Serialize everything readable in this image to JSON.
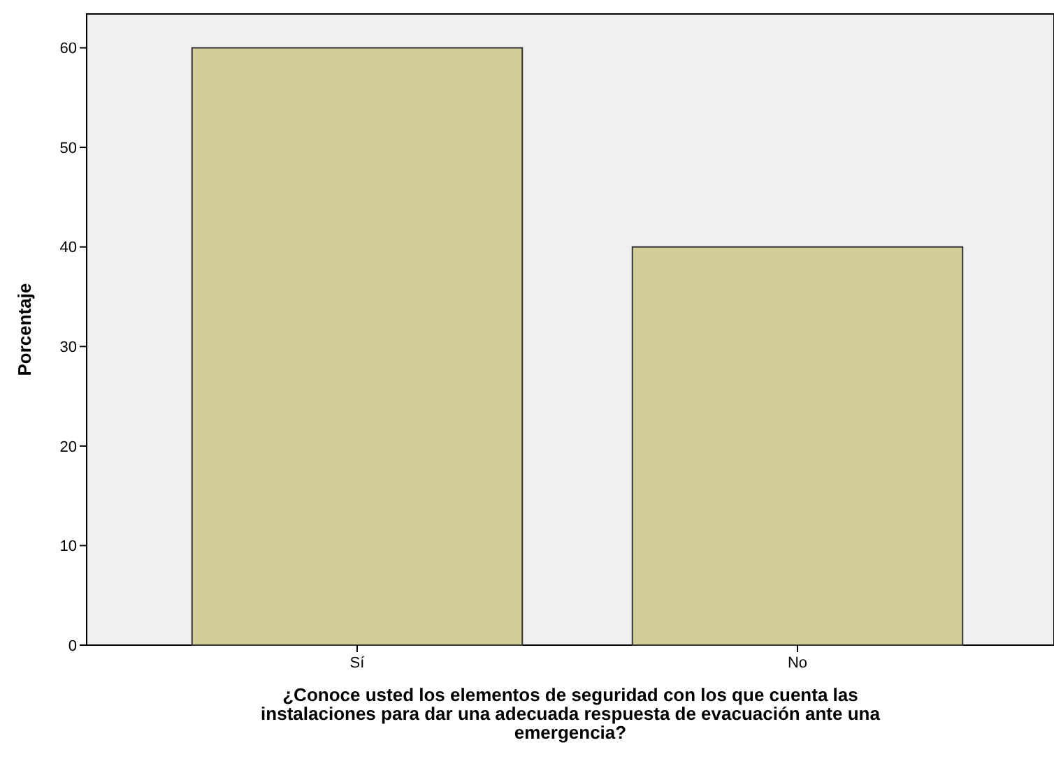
{
  "chart_data": {
    "type": "bar",
    "categories": [
      "Sí",
      "No"
    ],
    "values": [
      60,
      40
    ],
    "color": "#d3ce97",
    "xlabel": "¿Conoce usted los elementos de seguridad con los que cuenta las instalaciones para dar una adecuada respuesta de evacuación ante una emergencia?",
    "ylabel": "Porcentaje",
    "ylim": [
      0,
      63.4
    ],
    "yticks": [
      0,
      10,
      20,
      30,
      40,
      50,
      60
    ],
    "grid": false
  }
}
